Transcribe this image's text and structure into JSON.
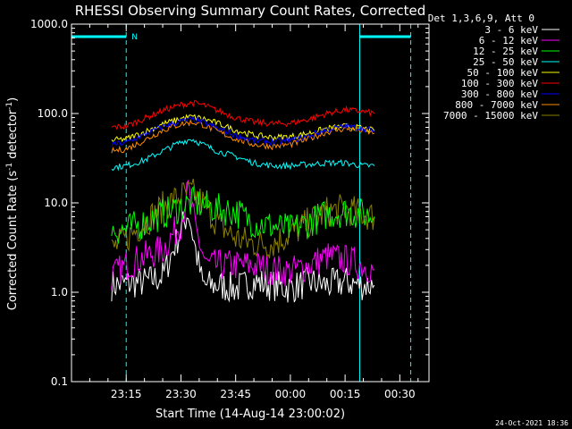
{
  "chart_data": {
    "type": "line",
    "title": "RHESSI Observing Summary Count Rates, Corrected",
    "xlabel": "Start Time (14-Aug-14 23:00:02)",
    "ylabel_main": "Corrected Count Rate (s",
    "ylabel_sup1": "-1",
    "ylabel_mid": " detector",
    "ylabel_sup2": "-1",
    "ylabel_end": ")",
    "yscale": "log",
    "ylim": [
      0.1,
      1000
    ],
    "xlim_minutes": [
      0,
      98
    ],
    "yticks": [
      "1000.0",
      "100.0",
      "10.0",
      "1.0",
      "0.1"
    ],
    "xticks": [
      {
        "m": 15,
        "label": "23:15"
      },
      {
        "m": 30,
        "label": "23:30"
      },
      {
        "m": 45,
        "label": "23:45"
      },
      {
        "m": 60,
        "label": "00:00"
      },
      {
        "m": 75,
        "label": "00:15"
      },
      {
        "m": 90,
        "label": "00:30"
      }
    ],
    "legend_header": "Det 1,3,6,9, Att 0",
    "timestamp": "24-Oct-2021 18:36",
    "night_marker": "N",
    "night_intervals": [
      [
        0,
        15
      ],
      [
        79,
        93
      ]
    ],
    "series": [
      {
        "name": "3 - 6 keV",
        "color": "#ffffff",
        "x": [
          11,
          20,
          25,
          32,
          34,
          36,
          40,
          45,
          50,
          55,
          60,
          65,
          70,
          75,
          80,
          83
        ],
        "y": [
          1.2,
          1.3,
          1.5,
          8.0,
          3.0,
          1.2,
          1.2,
          1.1,
          1.3,
          1.2,
          1.1,
          1.3,
          1.2,
          1.3,
          1.2,
          1.2
        ]
      },
      {
        "name": "6 - 12 keV",
        "color": "#ff00ff",
        "x": [
          11,
          15,
          20,
          25,
          30,
          32,
          34,
          37,
          40,
          45,
          50,
          55,
          60,
          65,
          70,
          75,
          80,
          83
        ],
        "y": [
          1.5,
          2.0,
          2.5,
          3.0,
          6.0,
          14.0,
          5.0,
          2.0,
          2.0,
          2.0,
          2.0,
          1.8,
          1.7,
          2.0,
          2.5,
          2.3,
          2.0,
          1.8
        ]
      },
      {
        "name": "12 - 25 keV",
        "color": "#00ff00",
        "x": [
          11,
          15,
          20,
          25,
          30,
          33,
          36,
          40,
          45,
          50,
          55,
          60,
          65,
          70,
          75,
          80,
          83
        ],
        "y": [
          5.0,
          5.0,
          6.0,
          7.5,
          9.0,
          10.0,
          9.5,
          8.5,
          8.0,
          6.0,
          5.5,
          5.0,
          6.0,
          7.5,
          8.0,
          7.5,
          7.0
        ]
      },
      {
        "name": "25 - 50 keV",
        "color": "#00ffff",
        "x": [
          11,
          15,
          20,
          25,
          30,
          33,
          36,
          40,
          45,
          50,
          55,
          60,
          65,
          70,
          75,
          80,
          83
        ],
        "y": [
          25,
          26,
          30,
          38,
          48,
          52,
          45,
          38,
          33,
          28,
          26,
          26,
          27,
          28,
          28,
          26,
          26
        ]
      },
      {
        "name": "50 - 100 keV",
        "color": "#ffff00",
        "x": [
          11,
          15,
          20,
          25,
          30,
          33,
          36,
          40,
          45,
          50,
          55,
          60,
          65,
          70,
          75,
          80,
          83
        ],
        "y": [
          50,
          52,
          62,
          76,
          88,
          92,
          88,
          78,
          65,
          57,
          54,
          55,
          60,
          68,
          72,
          68,
          64
        ]
      },
      {
        "name": "100 - 300 keV",
        "color": "#ff0000",
        "x": [
          11,
          15,
          20,
          25,
          30,
          33,
          36,
          40,
          45,
          50,
          55,
          60,
          65,
          70,
          75,
          80,
          83
        ],
        "y": [
          70,
          72,
          88,
          108,
          125,
          132,
          125,
          108,
          90,
          80,
          77,
          78,
          86,
          100,
          110,
          105,
          100
        ]
      },
      {
        "name": "300 - 800 keV",
        "color": "#0000ff",
        "x": [
          11,
          15,
          20,
          25,
          30,
          33,
          36,
          40,
          45,
          50,
          55,
          60,
          65,
          70,
          75,
          80,
          83
        ],
        "y": [
          45,
          47,
          58,
          72,
          82,
          86,
          80,
          68,
          57,
          50,
          48,
          50,
          56,
          66,
          72,
          68,
          64
        ]
      },
      {
        "name": "800 - 7000 keV",
        "color": "#ff8c00",
        "x": [
          11,
          15,
          20,
          25,
          30,
          33,
          36,
          40,
          45,
          50,
          55,
          60,
          65,
          70,
          75,
          80,
          83
        ],
        "y": [
          38,
          40,
          50,
          65,
          76,
          80,
          75,
          63,
          52,
          45,
          43,
          45,
          52,
          62,
          68,
          64,
          60
        ]
      },
      {
        "name": "7000 - 15000 keV",
        "color": "#8b8000",
        "x": [
          11,
          15,
          20,
          25,
          30,
          33,
          36,
          40,
          45,
          50,
          55,
          60,
          65,
          70,
          75,
          80,
          83
        ],
        "y": [
          3.0,
          4.0,
          6.0,
          9.0,
          12.0,
          13.0,
          10.0,
          6.0,
          4.0,
          3.5,
          3.5,
          4.5,
          6.0,
          8.0,
          8.5,
          7.5,
          7.0
        ]
      }
    ]
  }
}
